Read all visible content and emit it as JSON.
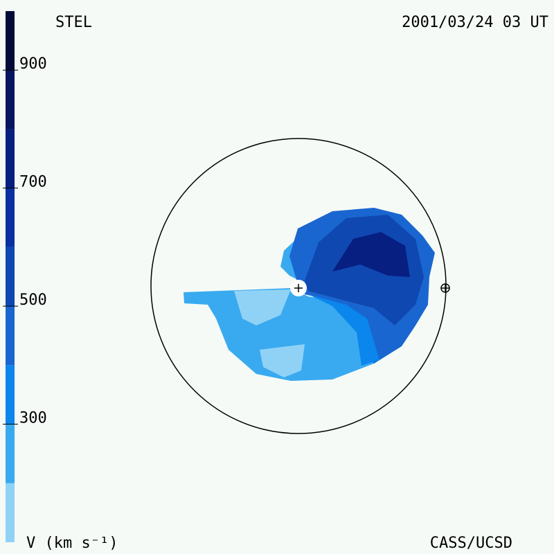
{
  "chart_data": {
    "type": "colorbar",
    "title": "STEL",
    "subtitle": "2001/03/24 03 UT",
    "ylabel": "V (km s⁻¹)",
    "credit": "CASS/UCSD",
    "ylim": [
      100,
      1000
    ],
    "yticks": [
      300,
      500,
      700,
      900
    ],
    "bins": [
      100,
      200,
      300,
      400,
      500,
      600,
      700,
      800,
      900,
      1000
    ],
    "colors": [
      "#90d2f6",
      "#3aaaf0",
      "#0a86ec",
      "#1a66d0",
      "#0f48b0",
      "#0830a0",
      "#061f80",
      "#051560",
      "#030c38"
    ]
  }
}
